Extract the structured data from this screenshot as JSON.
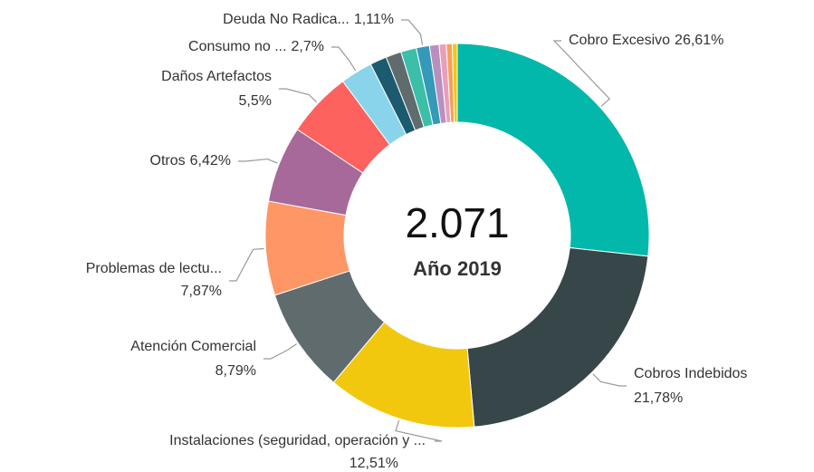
{
  "chart_data": {
    "type": "donut",
    "center_text": "2.071",
    "subtitle": "Año 2019",
    "categories": [
      "Cobro Excesivo",
      "Cobros Indebidos",
      "Instalaciones (seguridad, operación y ...",
      "Atención Comercial",
      "Problemas de lectu...",
      "Otros",
      "Daños Artefactos",
      "Consumo no ...",
      null,
      null,
      null,
      "Deuda No Radica...",
      null,
      null,
      null,
      null
    ],
    "values": [
      26.61,
      21.78,
      12.51,
      8.79,
      7.87,
      6.42,
      5.5,
      2.7,
      1.4,
      1.3,
      1.3,
      1.11,
      0.8,
      0.6,
      0.5,
      0.41
    ],
    "value_labels": [
      "26,61%",
      "21,78%",
      "12,51%",
      "8,79%",
      "7,87%",
      "6,42%",
      "5,5%",
      "2,7%",
      null,
      null,
      null,
      "1,11%",
      null,
      null,
      null,
      null
    ],
    "colors": [
      "#01b8aa",
      "#374649",
      "#f2c80f",
      "#5f6b6d",
      "#fe9666",
      "#a66999",
      "#fd625e",
      "#8ad4eb",
      "#1c5a70",
      "#5f6b6d",
      "#3bbfa8",
      "#3599b8",
      "#b98fc0",
      "#e8a0b8",
      "#f5a05a",
      "#f2c80f"
    ]
  }
}
